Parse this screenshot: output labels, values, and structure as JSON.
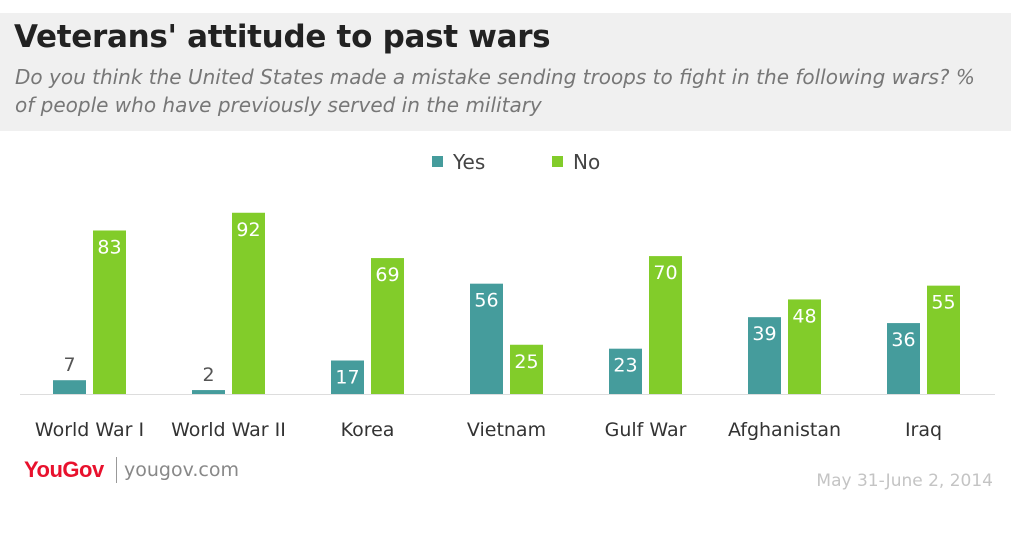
{
  "title": "Veterans' attitude to past wars",
  "subtitle": "Do you think the United States made a mistake sending troops to fight in the following wars? % of people who have previously served in the military",
  "footer": {
    "logo": "YouGov",
    "site": "yougov.com",
    "date": "May 31-June 2, 2014"
  },
  "colors": {
    "yes": "#459c9c",
    "no": "#82cc2a"
  },
  "chart_data": {
    "type": "bar",
    "categories": [
      "World War I",
      "World War II",
      "Korea",
      "Vietnam",
      "Gulf War",
      "Afghanistan",
      "Iraq"
    ],
    "series": [
      {
        "name": "Yes",
        "values": [
          7,
          2,
          17,
          56,
          23,
          39,
          36
        ]
      },
      {
        "name": "No",
        "values": [
          83,
          92,
          69,
          25,
          70,
          48,
          55
        ]
      }
    ],
    "legend_placement": "top-center",
    "ylim": [
      0,
      100
    ],
    "grid": false
  }
}
